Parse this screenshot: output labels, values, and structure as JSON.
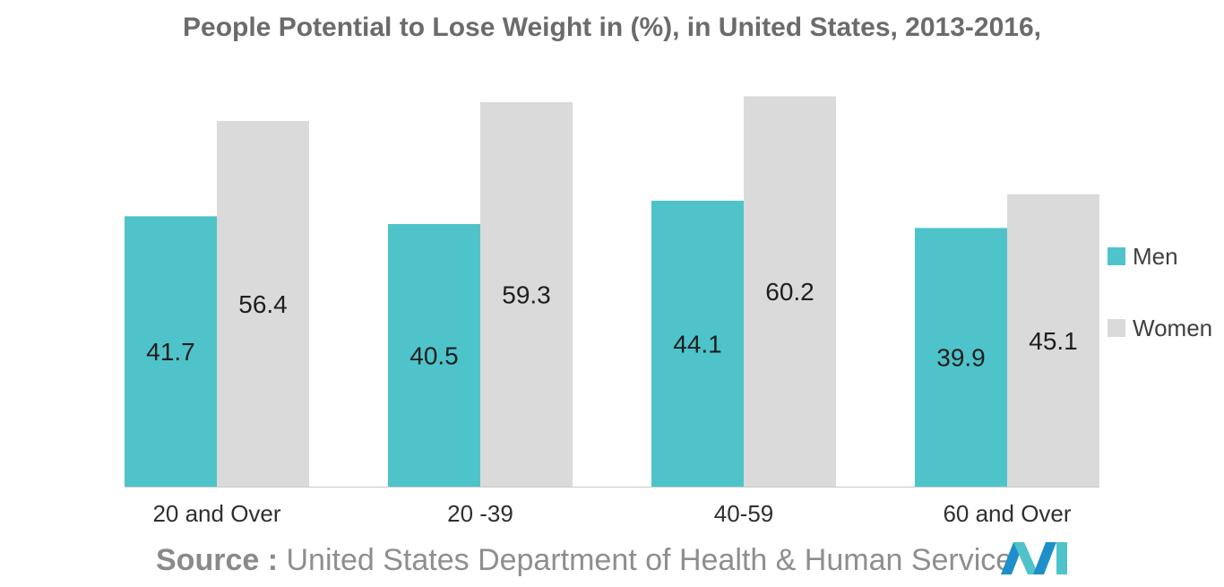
{
  "chart_data": {
    "type": "bar",
    "title": "People Potential to Lose Weight in (%), in United States, 2013-2016,",
    "categories": [
      "20 and Over",
      "20 -39",
      "40-59",
      "60 and Over"
    ],
    "series": [
      {
        "name": "Men",
        "values": [
          41.7,
          40.5,
          44.1,
          39.9
        ],
        "color": "#4fc3ca"
      },
      {
        "name": "Women",
        "values": [
          56.4,
          59.3,
          60.2,
          45.1
        ],
        "color": "#dadada"
      }
    ],
    "xlabel": "",
    "ylabel": "",
    "ylim": [
      0,
      64
    ],
    "grid": false,
    "legend_position": "right"
  },
  "source": {
    "key": "Source :",
    "text": "United States Department of Health & Human Service"
  },
  "logo": {
    "icon": "mordor-intelligence-logo",
    "colors": [
      "#1f8fc9",
      "#4fc3ca"
    ]
  }
}
